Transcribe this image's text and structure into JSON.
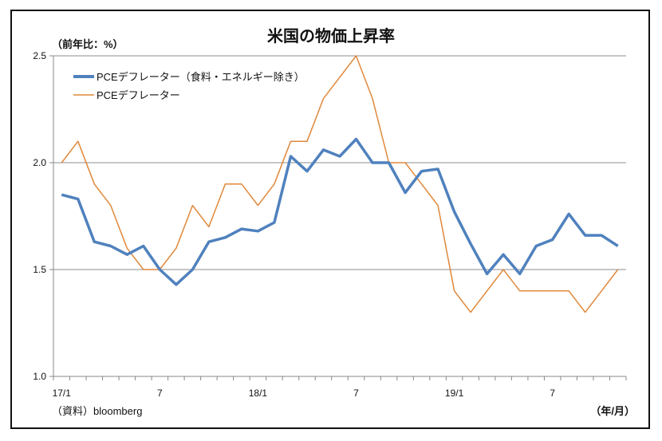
{
  "chart_data": {
    "type": "line",
    "title": "米国の物価上昇率",
    "unit_label": "（前年比：%）",
    "source_label": "（資料）bloomberg",
    "xlabel": "（年/月）",
    "ylabel": "",
    "ylim": [
      1.0,
      2.5
    ],
    "yticks": [
      "1.0",
      "1.5",
      "2.0",
      "2.5"
    ],
    "grid": true,
    "legend_position": "top-left",
    "x": [
      "17/1",
      "17/2",
      "17/3",
      "17/4",
      "17/5",
      "17/6",
      "17/7",
      "17/8",
      "17/9",
      "17/10",
      "17/11",
      "17/12",
      "18/1",
      "18/2",
      "18/3",
      "18/4",
      "18/5",
      "18/6",
      "18/7",
      "18/8",
      "18/9",
      "18/10",
      "18/11",
      "18/12",
      "19/1",
      "19/2",
      "19/3",
      "19/4",
      "19/5",
      "19/6",
      "19/7",
      "19/8",
      "19/9",
      "19/10",
      "19/11"
    ],
    "xtick_labels": [
      {
        "index": 0,
        "label": "17/1"
      },
      {
        "index": 6,
        "label": "7"
      },
      {
        "index": 12,
        "label": "18/1"
      },
      {
        "index": 18,
        "label": "7"
      },
      {
        "index": 24,
        "label": "19/1"
      },
      {
        "index": 30,
        "label": "7"
      }
    ],
    "series": [
      {
        "name": "PCEデフレーター（食料・エネルギー除き）",
        "color": "#4f81bd",
        "values": [
          1.85,
          1.83,
          1.63,
          1.61,
          1.57,
          1.61,
          1.5,
          1.43,
          1.5,
          1.63,
          1.65,
          1.69,
          1.68,
          1.72,
          2.03,
          1.96,
          2.06,
          2.03,
          2.11,
          2.0,
          2.0,
          1.86,
          1.96,
          1.97,
          1.77,
          1.62,
          1.48,
          1.57,
          1.48,
          1.61,
          1.64,
          1.76,
          1.66,
          1.66,
          1.61
        ]
      },
      {
        "name": "PCEデフレーター",
        "color": "#e0883a",
        "values": [
          2.0,
          2.1,
          1.9,
          1.8,
          1.6,
          1.5,
          1.5,
          1.6,
          1.8,
          1.7,
          1.9,
          1.9,
          1.8,
          1.9,
          2.1,
          2.1,
          2.3,
          2.4,
          2.5,
          2.3,
          2.0,
          2.0,
          1.9,
          1.8,
          1.4,
          1.3,
          1.4,
          1.5,
          1.4,
          1.4,
          1.4,
          1.4,
          1.3,
          1.4,
          1.5
        ]
      }
    ]
  }
}
